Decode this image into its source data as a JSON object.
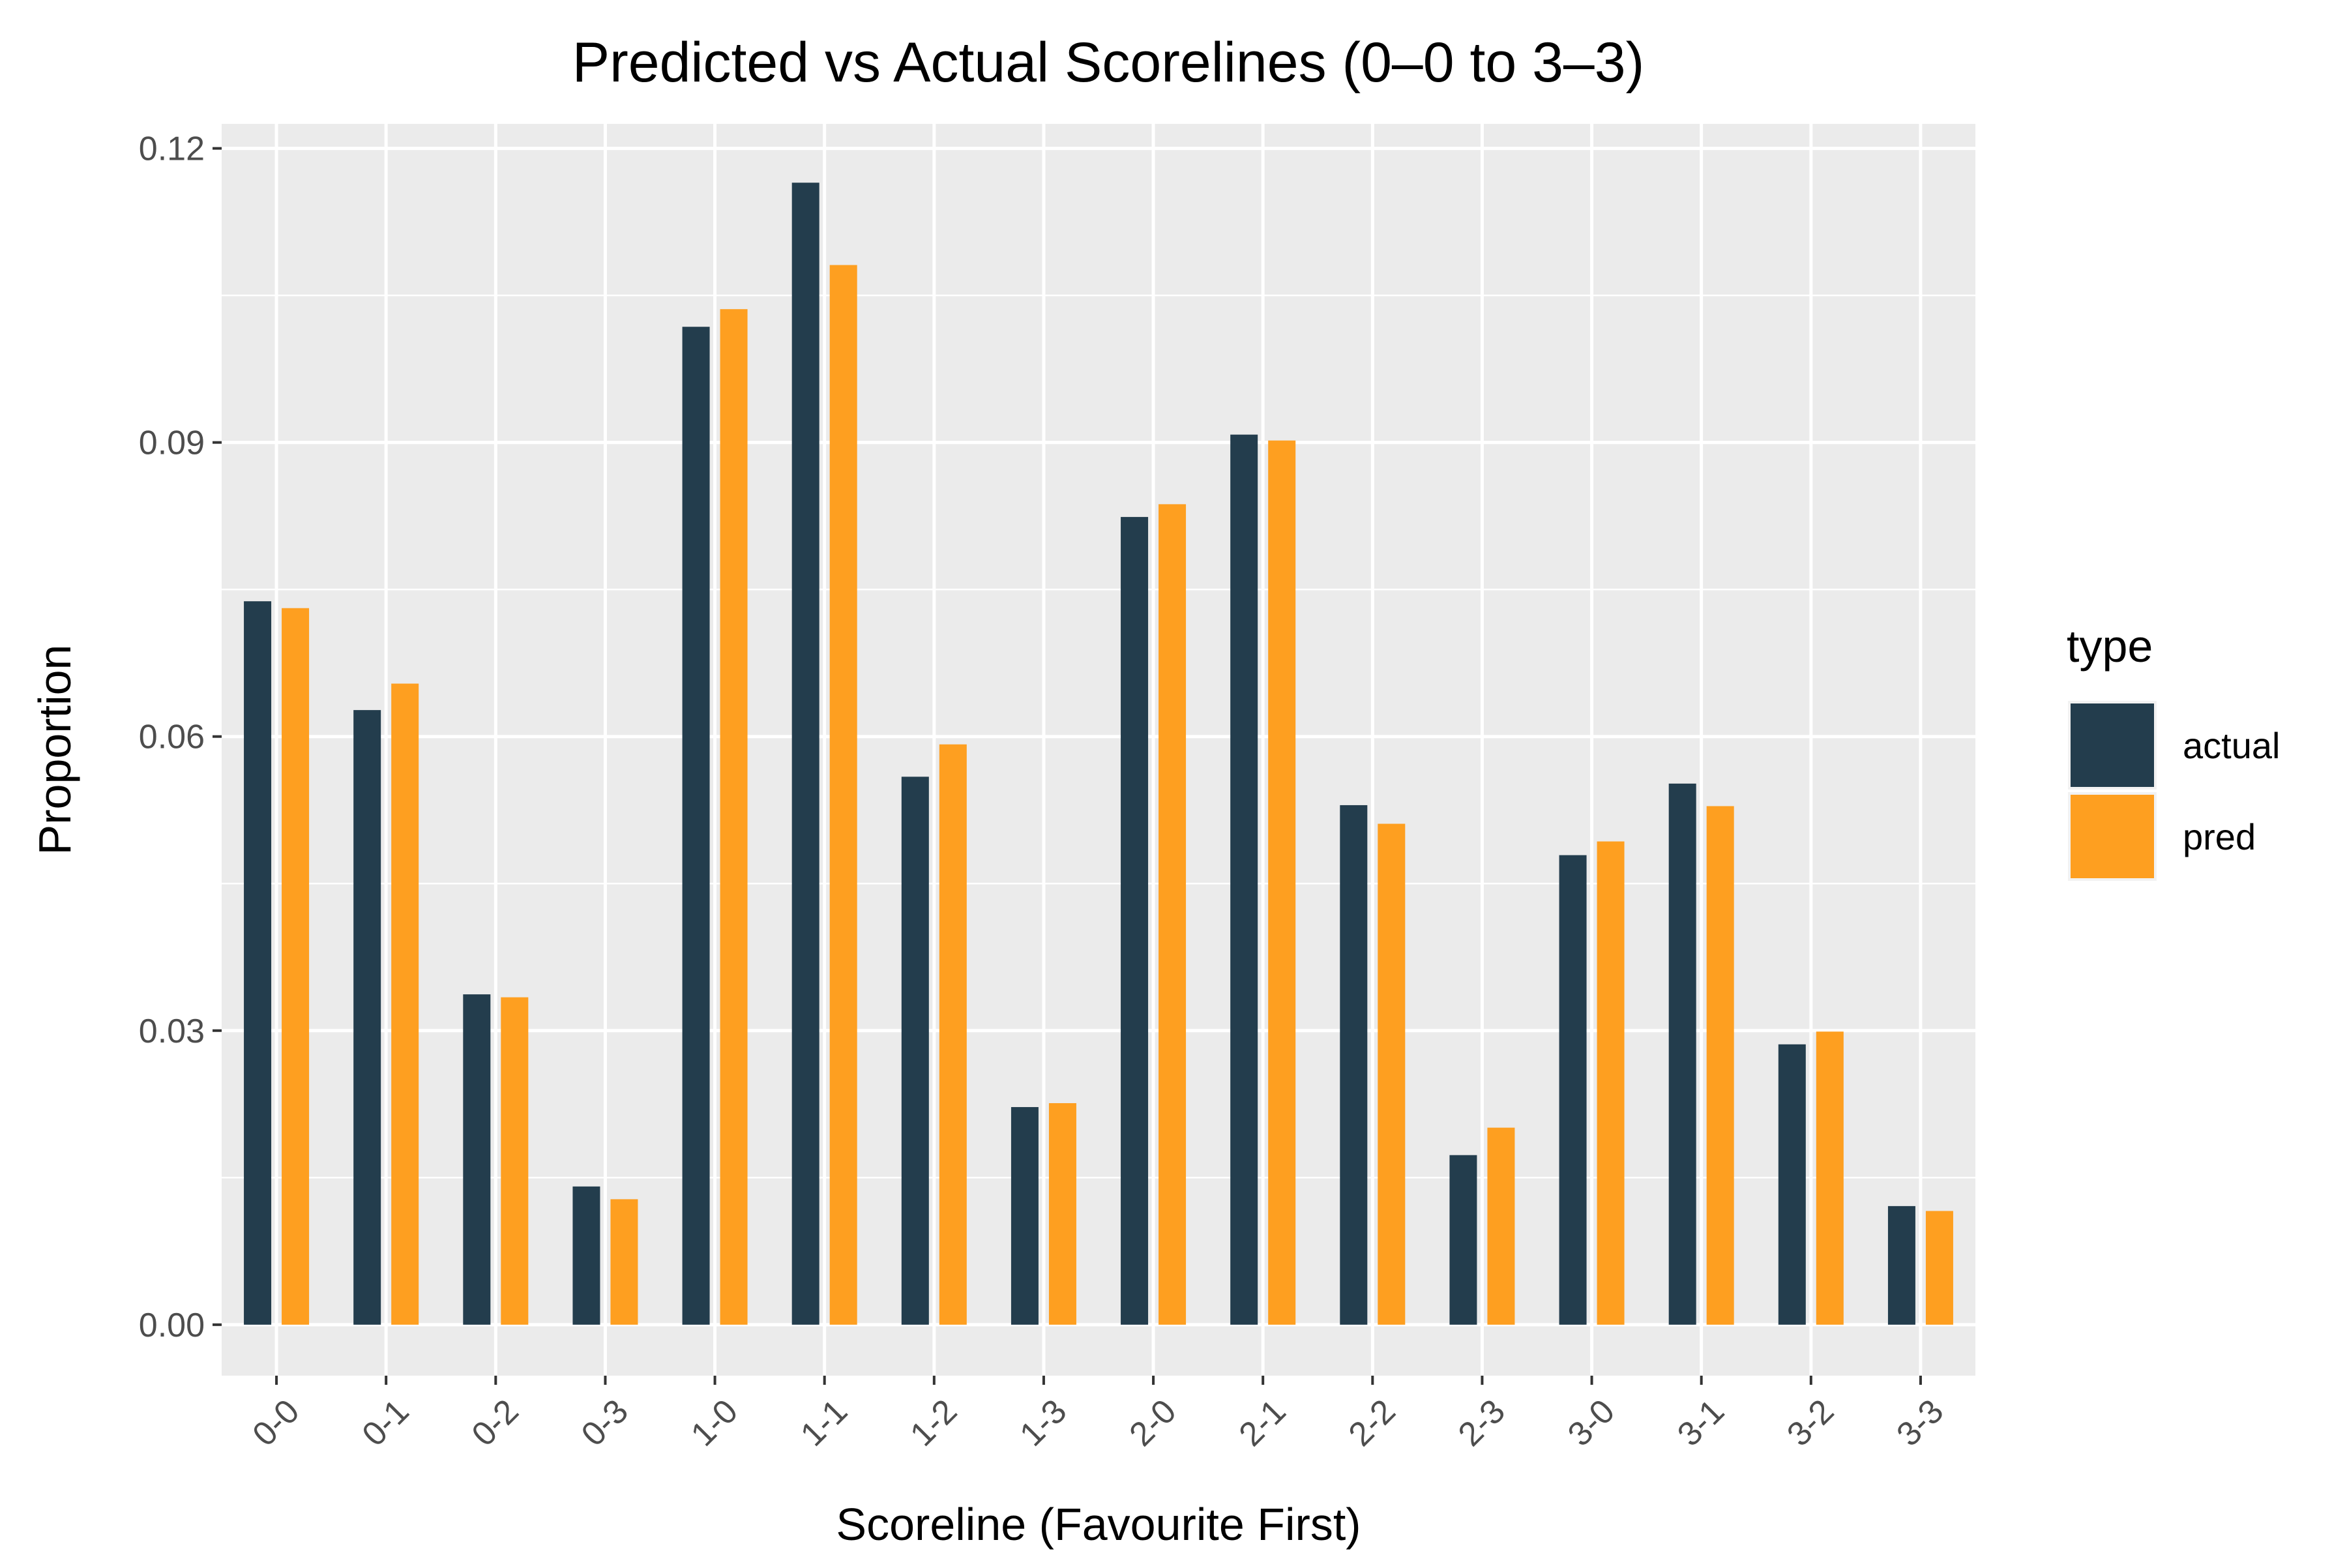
{
  "chart_data": {
    "type": "bar",
    "title": "Predicted vs Actual Scorelines (0–0 to 3–3)",
    "xlabel": "Scoreline (Favourite First)",
    "ylabel": "Proportion",
    "categories": [
      "0-0",
      "0-1",
      "0-2",
      "0-3",
      "1-0",
      "1-1",
      "1-2",
      "1-3",
      "2-0",
      "2-1",
      "2-2",
      "2-3",
      "3-0",
      "3-1",
      "3-2",
      "3-3"
    ],
    "series": [
      {
        "name": "actual",
        "color": "#233d4d",
        "values": [
          0.0738,
          0.0627,
          0.0337,
          0.0141,
          0.1018,
          0.1165,
          0.0559,
          0.0222,
          0.0824,
          0.0908,
          0.053,
          0.0173,
          0.0479,
          0.0552,
          0.0286,
          0.0121
        ]
      },
      {
        "name": "pred",
        "color": "#fe9f20",
        "values": [
          0.0731,
          0.0654,
          0.0334,
          0.0128,
          0.1036,
          0.1081,
          0.0592,
          0.0226,
          0.0837,
          0.0902,
          0.0511,
          0.0201,
          0.0493,
          0.0529,
          0.0299,
          0.0116
        ]
      }
    ],
    "ylim": [
      -0.0052,
      0.1225
    ],
    "yticks": [
      0.0,
      0.03,
      0.06,
      0.09,
      0.12
    ],
    "ytick_labels": [
      "0.00",
      "0.03",
      "0.06",
      "0.09",
      "0.12"
    ],
    "grid": true,
    "panel_background": "#ebebeb",
    "legend": {
      "title": "type",
      "position": "right",
      "entries": [
        "actual",
        "pred"
      ]
    }
  }
}
